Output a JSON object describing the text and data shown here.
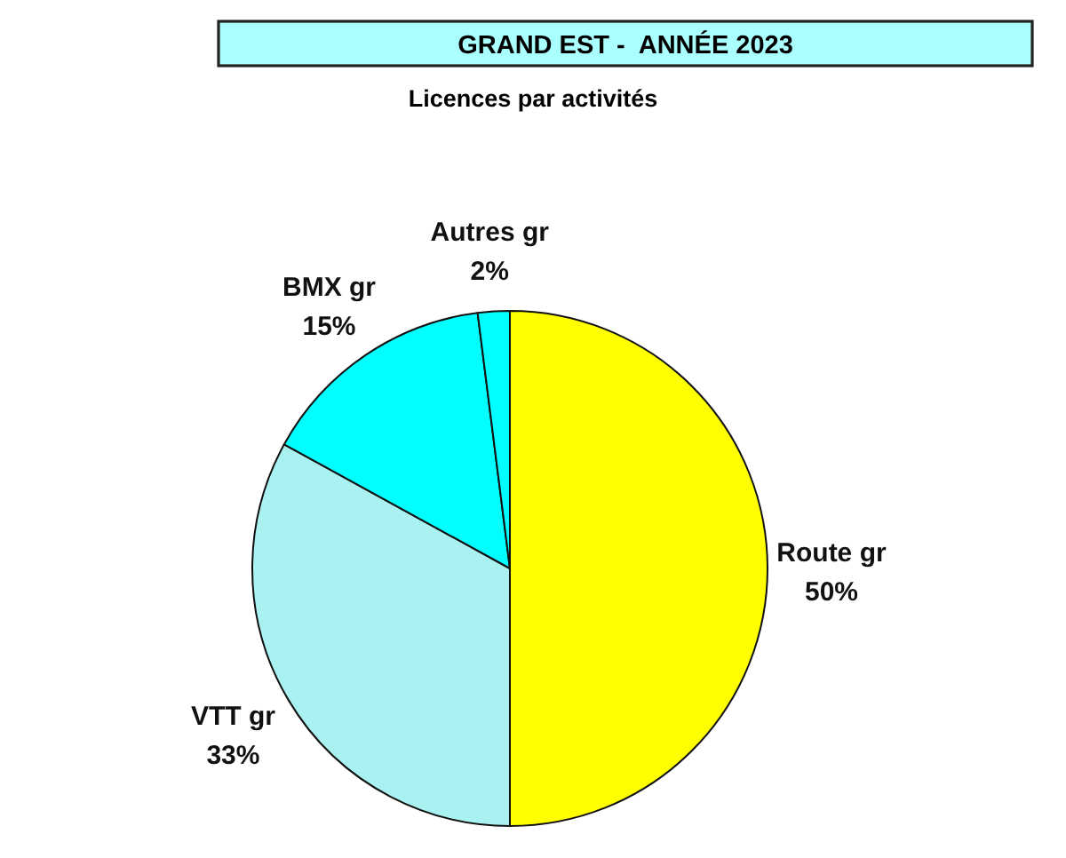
{
  "chart_data": {
    "type": "pie",
    "title": "GRAND EST -  ANNÉE 2023",
    "subtitle": "Licences par activités",
    "categories": [
      "Route gr",
      "VTT gr",
      "BMX gr",
      "Autres gr"
    ],
    "values": [
      50,
      33,
      15,
      2
    ],
    "colors": [
      "#ffff00",
      "#aaf2f2",
      "#00ffff",
      "#00ffff"
    ],
    "value_labels": [
      "50%",
      "33%",
      "15%",
      "2%"
    ]
  }
}
